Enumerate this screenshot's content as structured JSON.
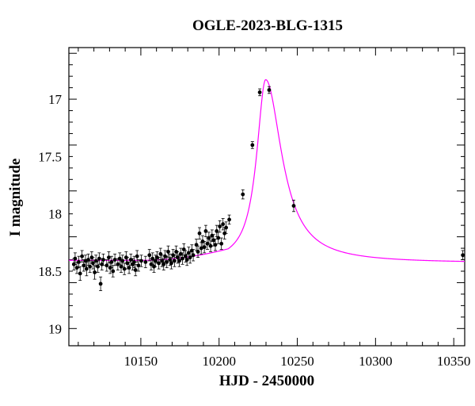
{
  "chart_data": {
    "type": "scatter",
    "title": "OGLE-2023-BLG-1315",
    "xlabel": "HJD - 2450000",
    "ylabel": "I magnitude",
    "xlim": [
      10104,
      10357
    ],
    "ylim": [
      19.15,
      16.55
    ],
    "y_inverted": true,
    "x_ticks": [
      10150,
      10200,
      10250,
      10300,
      10350
    ],
    "y_ticks": [
      17,
      17.5,
      18,
      18.5,
      19
    ],
    "y_tick_labels": [
      "17",
      "17.5",
      "18",
      "18.5",
      "19"
    ],
    "grid": false,
    "model_color": "#ff00ff",
    "point_color": "#000000",
    "model": {
      "baseline": 18.43,
      "t0": 10229.8,
      "peak": 16.83,
      "rise_width": 7,
      "decay_width": 12.5,
      "slow_rise_base": 18.405,
      "slow_rise_t_start": 10150,
      "slow_rise_t_end": 10211
    },
    "points": [
      [
        10107.2,
        18.44,
        0.05
      ],
      [
        10108.0,
        18.39,
        0.05
      ],
      [
        10109.1,
        18.47,
        0.05
      ],
      [
        10110.3,
        18.42,
        0.05
      ],
      [
        10111.2,
        18.52,
        0.06
      ],
      [
        10112.4,
        18.37,
        0.05
      ],
      [
        10113.5,
        18.45,
        0.05
      ],
      [
        10114.6,
        18.41,
        0.05
      ],
      [
        10115.3,
        18.48,
        0.06
      ],
      [
        10116.4,
        18.4,
        0.05
      ],
      [
        10117.5,
        18.46,
        0.05
      ],
      [
        10118.6,
        18.38,
        0.05
      ],
      [
        10119.4,
        18.43,
        0.05
      ],
      [
        10120.5,
        18.51,
        0.06
      ],
      [
        10121.3,
        18.41,
        0.05
      ],
      [
        10122.5,
        18.46,
        0.05
      ],
      [
        10123.4,
        18.39,
        0.05
      ],
      [
        10124.3,
        18.61,
        0.06
      ],
      [
        10125.1,
        18.44,
        0.05
      ],
      [
        10126.0,
        18.4,
        0.05
      ],
      [
        10128.2,
        18.45,
        0.05
      ],
      [
        10129.5,
        18.38,
        0.05
      ],
      [
        10130.4,
        18.47,
        0.05
      ],
      [
        10131.3,
        18.42,
        0.05
      ],
      [
        10132.2,
        18.5,
        0.05
      ],
      [
        10133.4,
        18.4,
        0.05
      ],
      [
        10135.3,
        18.44,
        0.05
      ],
      [
        10136.5,
        18.39,
        0.05
      ],
      [
        10137.4,
        18.46,
        0.05
      ],
      [
        10138.3,
        18.41,
        0.05
      ],
      [
        10139.5,
        18.48,
        0.05
      ],
      [
        10140.6,
        18.38,
        0.05
      ],
      [
        10141.4,
        18.43,
        0.05
      ],
      [
        10142.5,
        18.47,
        0.05
      ],
      [
        10143.6,
        18.4,
        0.05
      ],
      [
        10144.8,
        18.44,
        0.05
      ],
      [
        10145.7,
        18.42,
        0.05
      ],
      [
        10146.6,
        18.49,
        0.05
      ],
      [
        10147.6,
        18.37,
        0.05
      ],
      [
        10148.5,
        18.45,
        0.05
      ],
      [
        10150.3,
        18.41,
        0.05
      ],
      [
        10153.0,
        18.42,
        0.05
      ],
      [
        10155.5,
        18.36,
        0.05
      ],
      [
        10156.6,
        18.44,
        0.05
      ],
      [
        10157.5,
        18.39,
        0.05
      ],
      [
        10158.4,
        18.46,
        0.05
      ],
      [
        10159.3,
        18.41,
        0.05
      ],
      [
        10160.4,
        18.38,
        0.05
      ],
      [
        10161.5,
        18.43,
        0.05
      ],
      [
        10162.6,
        18.35,
        0.05
      ],
      [
        10163.5,
        18.41,
        0.05
      ],
      [
        10164.6,
        18.44,
        0.05
      ],
      [
        10165.5,
        18.37,
        0.05
      ],
      [
        10166.6,
        18.42,
        0.05
      ],
      [
        10167.5,
        18.33,
        0.05
      ],
      [
        10168.6,
        18.4,
        0.05
      ],
      [
        10169.5,
        18.43,
        0.05
      ],
      [
        10170.6,
        18.36,
        0.05
      ],
      [
        10171.5,
        18.41,
        0.05
      ],
      [
        10172.6,
        18.33,
        0.05
      ],
      [
        10173.5,
        18.38,
        0.05
      ],
      [
        10174.6,
        18.41,
        0.05
      ],
      [
        10175.5,
        18.35,
        0.05
      ],
      [
        10176.6,
        18.39,
        0.05
      ],
      [
        10177.5,
        18.31,
        0.05
      ],
      [
        10178.6,
        18.37,
        0.05
      ],
      [
        10179.5,
        18.4,
        0.05
      ],
      [
        10180.6,
        18.34,
        0.05
      ],
      [
        10181.5,
        18.38,
        0.05
      ],
      [
        10182.6,
        18.32,
        0.05
      ],
      [
        10183.5,
        18.36,
        0.05
      ],
      [
        10185.5,
        18.27,
        0.05
      ],
      [
        10186.5,
        18.33,
        0.05
      ],
      [
        10187.5,
        18.17,
        0.05
      ],
      [
        10188.6,
        18.3,
        0.05
      ],
      [
        10189.5,
        18.24,
        0.05
      ],
      [
        10190.6,
        18.29,
        0.05
      ],
      [
        10191.5,
        18.15,
        0.05
      ],
      [
        10192.5,
        18.26,
        0.05
      ],
      [
        10193.5,
        18.21,
        0.05
      ],
      [
        10194.6,
        18.28,
        0.05
      ],
      [
        10195.5,
        18.19,
        0.05
      ],
      [
        10196.5,
        18.23,
        0.05
      ],
      [
        10197.6,
        18.27,
        0.05
      ],
      [
        10198.5,
        18.15,
        0.05
      ],
      [
        10199.5,
        18.21,
        0.05
      ],
      [
        10200.5,
        18.11,
        0.05
      ],
      [
        10201.5,
        18.26,
        0.05
      ],
      [
        10202.5,
        18.09,
        0.05
      ],
      [
        10203.5,
        18.17,
        0.05
      ],
      [
        10204.5,
        18.12,
        0.05
      ],
      [
        10206.5,
        18.05,
        0.04
      ],
      [
        10215.2,
        17.83,
        0.04
      ],
      [
        10221.3,
        17.4,
        0.03
      ],
      [
        10226.0,
        16.94,
        0.03
      ],
      [
        10232.0,
        16.92,
        0.03
      ],
      [
        10247.7,
        17.93,
        0.05
      ],
      [
        10355.8,
        18.36,
        0.04
      ]
    ]
  }
}
